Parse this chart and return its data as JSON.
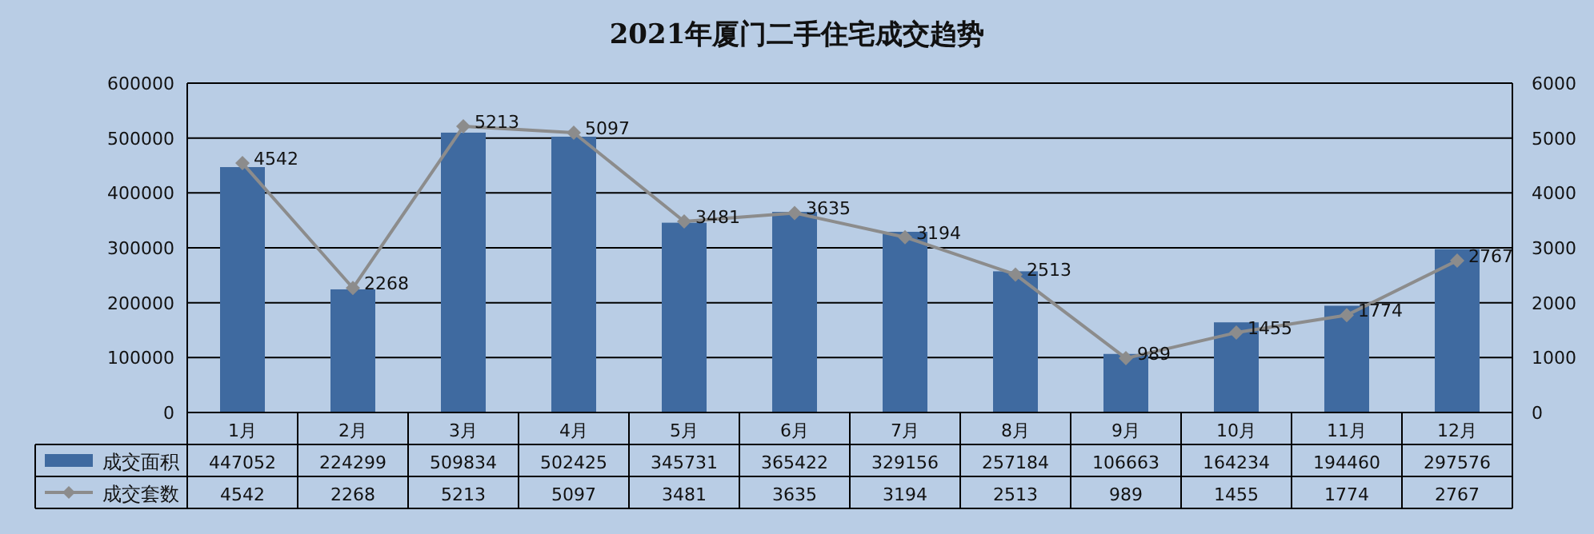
{
  "chart_data": {
    "type": "bar",
    "title": "2021年厦门二手住宅成交趋势",
    "categories": [
      "1月",
      "2月",
      "3月",
      "4月",
      "5月",
      "6月",
      "7月",
      "8月",
      "9月",
      "10月",
      "11月",
      "12月"
    ],
    "series": [
      {
        "name": "成交面积",
        "type": "bar",
        "color": "#3f6aa0",
        "values": [
          447052,
          224299,
          509834,
          502425,
          345731,
          365422,
          329156,
          257184,
          106663,
          164234,
          194460,
          297576
        ]
      },
      {
        "name": "成交套数",
        "type": "line",
        "axis": "y2",
        "color": "#8c8c8c",
        "values": [
          4542,
          2268,
          5213,
          5097,
          3481,
          3635,
          3194,
          2513,
          989,
          1455,
          1774,
          2767
        ]
      }
    ],
    "ylim": [
      0,
      600000
    ],
    "yticks": [
      0,
      100000,
      200000,
      300000,
      400000,
      500000,
      600000
    ],
    "y2lim": [
      0,
      6000
    ],
    "y2ticks": [
      0,
      1000,
      2000,
      3000,
      4000,
      5000,
      6000
    ],
    "annotations": [
      "4542",
      "2268",
      "5213",
      "5097",
      "3481",
      "3635",
      "3194",
      "2513",
      "989",
      "1455",
      "1774",
      "2767"
    ],
    "grid": "y",
    "legend": "bottom",
    "marker": "diamond",
    "data_labels": true
  }
}
